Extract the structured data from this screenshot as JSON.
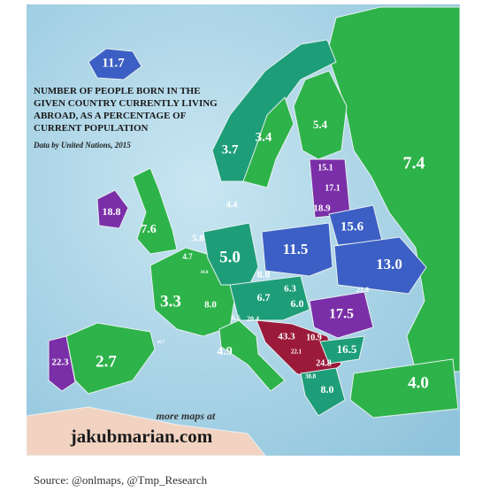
{
  "title_lines": [
    "NUMBER OF PEOPLE BORN IN THE",
    "GIVEN COUNTRY CURRENTLY LIVING",
    "ABROAD, AS A PERCENTAGE OF",
    "CURRENT POPULATION"
  ],
  "subtitle": "Data by United Nations, 2015",
  "regions": [
    "11.7",
    "3.7",
    "3.4",
    "5.4",
    "7.4",
    "15.1",
    "17.1",
    "18.9",
    "18.8",
    "7.6",
    "5.8",
    "4.4",
    "4.7",
    "10.8",
    "5.0",
    "11.5",
    "15.6",
    "13.0",
    "8.8",
    "6.3",
    "3.3",
    "8.0",
    "6.7",
    "6.0",
    "21.8",
    "6.5",
    "20.4",
    "17.5",
    "43.3",
    "10.9",
    "22.1",
    "24.8",
    "16.5",
    "38.8",
    "10.7",
    "22.3",
    "2.7",
    "4.9",
    "8.0",
    "4.0"
  ],
  "promo": {
    "line1": "more maps at",
    "line2": "jakubmarian.com"
  },
  "source": "Source: @onlmaps, @Tmp_Research"
}
